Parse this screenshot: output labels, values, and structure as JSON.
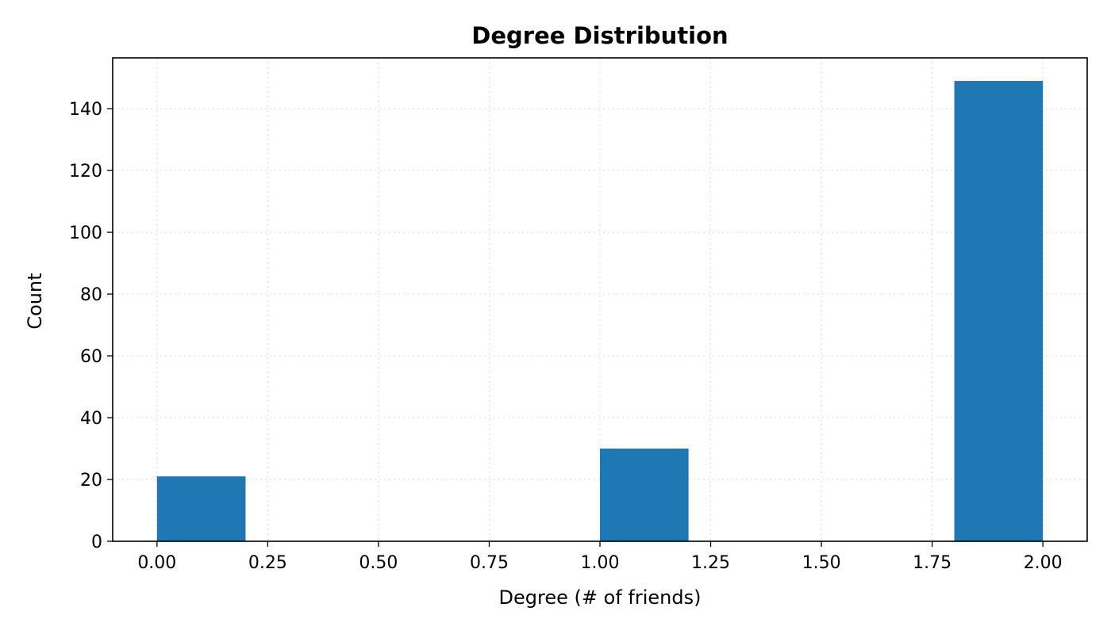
{
  "chart_data": {
    "type": "bar",
    "title": "Degree Distribution",
    "xlabel": "Degree (# of friends)",
    "ylabel": "Count",
    "xlim": [
      -0.1,
      2.1
    ],
    "ylim": [
      0,
      156.45
    ],
    "grid": true,
    "bar_color": "#1f77b4",
    "bins": [
      {
        "x0": 0.0,
        "x1": 0.2,
        "count": 21
      },
      {
        "x0": 1.0,
        "x1": 1.2,
        "count": 30
      },
      {
        "x0": 1.8,
        "x1": 2.0,
        "count": 149
      }
    ],
    "x_ticks": [
      {
        "value": 0.0,
        "label": "0.00"
      },
      {
        "value": 0.25,
        "label": "0.25"
      },
      {
        "value": 0.5,
        "label": "0.50"
      },
      {
        "value": 0.75,
        "label": "0.75"
      },
      {
        "value": 1.0,
        "label": "1.00"
      },
      {
        "value": 1.25,
        "label": "1.25"
      },
      {
        "value": 1.5,
        "label": "1.50"
      },
      {
        "value": 1.75,
        "label": "1.75"
      },
      {
        "value": 2.0,
        "label": "2.00"
      }
    ],
    "y_ticks": [
      {
        "value": 0,
        "label": "0"
      },
      {
        "value": 20,
        "label": "20"
      },
      {
        "value": 40,
        "label": "40"
      },
      {
        "value": 60,
        "label": "60"
      },
      {
        "value": 80,
        "label": "80"
      },
      {
        "value": 100,
        "label": "100"
      },
      {
        "value": 120,
        "label": "120"
      },
      {
        "value": 140,
        "label": "140"
      }
    ]
  }
}
